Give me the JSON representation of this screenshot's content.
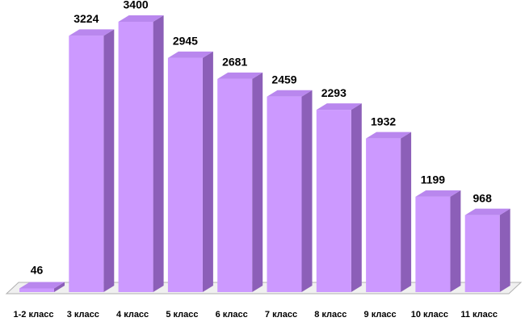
{
  "chart_data": {
    "type": "bar3d",
    "categories": [
      "1-2 класс",
      "3 класс",
      "4 класс",
      "5 класс",
      "6 класс",
      "7 класс",
      "8 класс",
      "9 класс",
      "10 класс",
      "11 класс"
    ],
    "values": [
      46,
      3224,
      3400,
      2945,
      2681,
      2459,
      2293,
      1932,
      1199,
      968
    ],
    "color": "#cc99ff"
  }
}
